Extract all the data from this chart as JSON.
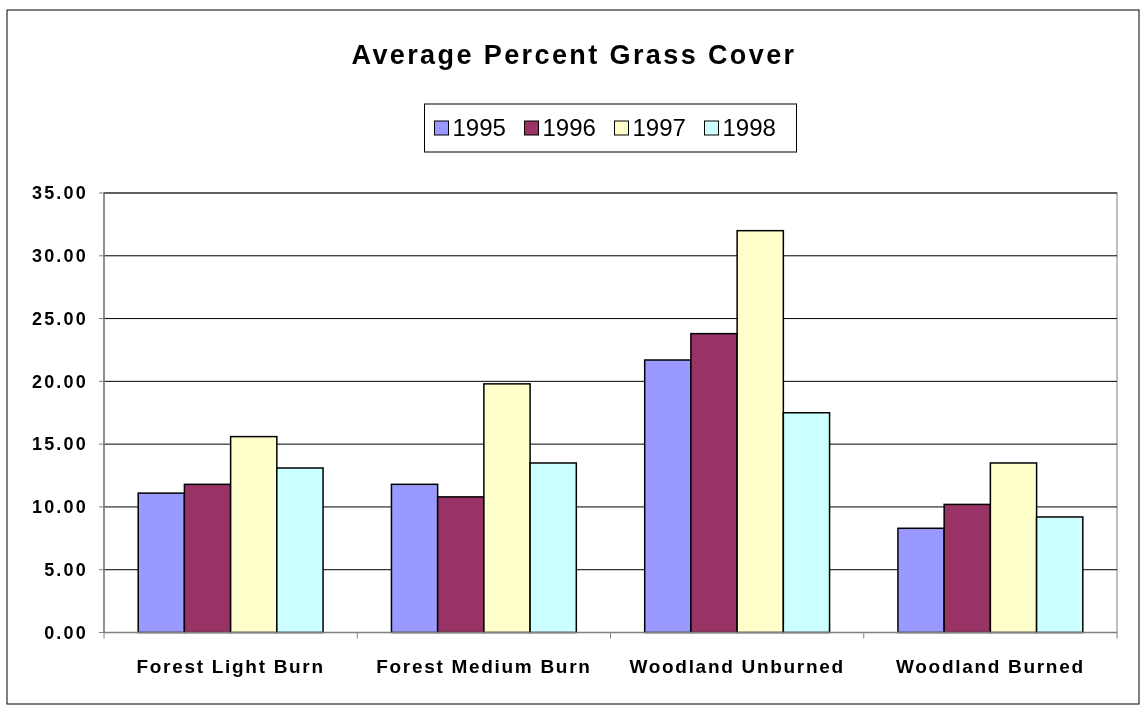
{
  "chart_data": {
    "type": "bar",
    "title": "Average Percent Grass Cover",
    "categories": [
      "Forest Light Burn",
      "Forest Medium Burn",
      "Woodland Unburned",
      "Woodland Burned"
    ],
    "series": [
      {
        "name": "1995",
        "color": "#9999ff",
        "values": [
          11.1,
          11.8,
          21.7,
          8.3
        ]
      },
      {
        "name": "1996",
        "color": "#993366",
        "values": [
          11.8,
          10.8,
          23.8,
          10.2
        ]
      },
      {
        "name": "1997",
        "color": "#ffffcc",
        "values": [
          15.6,
          19.8,
          32.0,
          13.5
        ]
      },
      {
        "name": "1998",
        "color": "#ccffff",
        "values": [
          13.1,
          13.5,
          17.5,
          9.2
        ]
      }
    ],
    "ylim": [
      0,
      35
    ],
    "yticks": [
      {
        "value": 0,
        "label": "0.00"
      },
      {
        "value": 5,
        "label": "5.00"
      },
      {
        "value": 10,
        "label": "10.00"
      },
      {
        "value": 15,
        "label": "15.00"
      },
      {
        "value": 20,
        "label": "20.00"
      },
      {
        "value": 25,
        "label": "25.00"
      },
      {
        "value": 30,
        "label": "30.00"
      },
      {
        "value": 35,
        "label": "35.00"
      }
    ],
    "grid": "y",
    "legend": "top"
  }
}
